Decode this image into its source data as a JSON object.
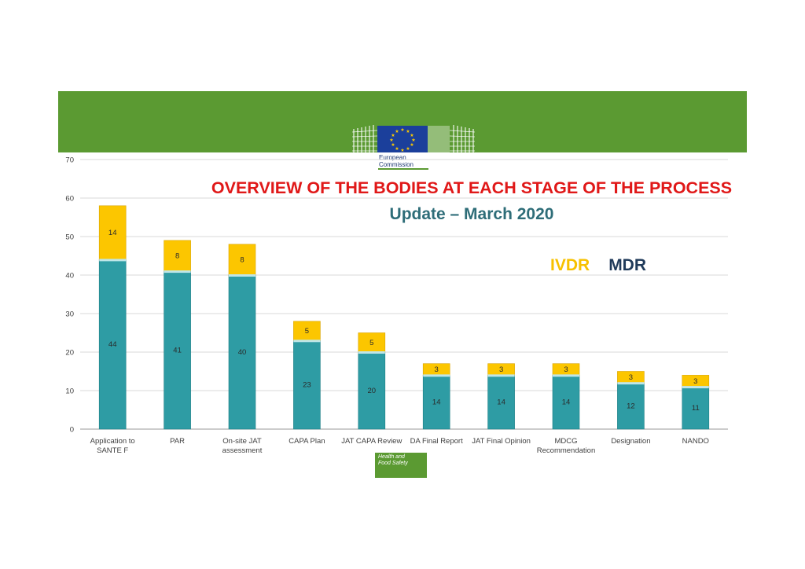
{
  "header": {
    "logo_text_line1": "European",
    "logo_text_line2": "Commission",
    "badge_line1": "Health and",
    "badge_line2": "Food Safety"
  },
  "colors": {
    "band": "#5b9a32",
    "mdr": "#2e9ca4",
    "ivdr": "#fcc600",
    "title": "#e01818",
    "subtitle": "#2e6d78",
    "legend_mdr": "#1f3a5a",
    "legend_ivdr": "#f7c100"
  },
  "chart_data": {
    "type": "bar",
    "stacked": true,
    "title": "OVERVIEW OF THE BODIES AT EACH STAGE OF THE PROCESS",
    "subtitle": "Update – March 2020",
    "categories": [
      "Application to SANTE F",
      "PAR",
      "On-site JAT assessment",
      "CAPA Plan",
      "JAT CAPA Review",
      "DA Final Report",
      "JAT Final Opinion",
      "MDCG Recommendation",
      "Designation",
      "NANDO"
    ],
    "series": [
      {
        "name": "MDR",
        "values": [
          44,
          41,
          40,
          23,
          20,
          14,
          14,
          14,
          12,
          11
        ]
      },
      {
        "name": "IVDR",
        "values": [
          14,
          8,
          8,
          5,
          5,
          3,
          3,
          3,
          3,
          3
        ]
      }
    ],
    "ylim": [
      0,
      70
    ],
    "yticks": [
      0,
      10,
      20,
      30,
      40,
      50,
      60,
      70
    ],
    "xlabel": "",
    "ylabel": "",
    "grid": true,
    "legend_position": "right"
  }
}
